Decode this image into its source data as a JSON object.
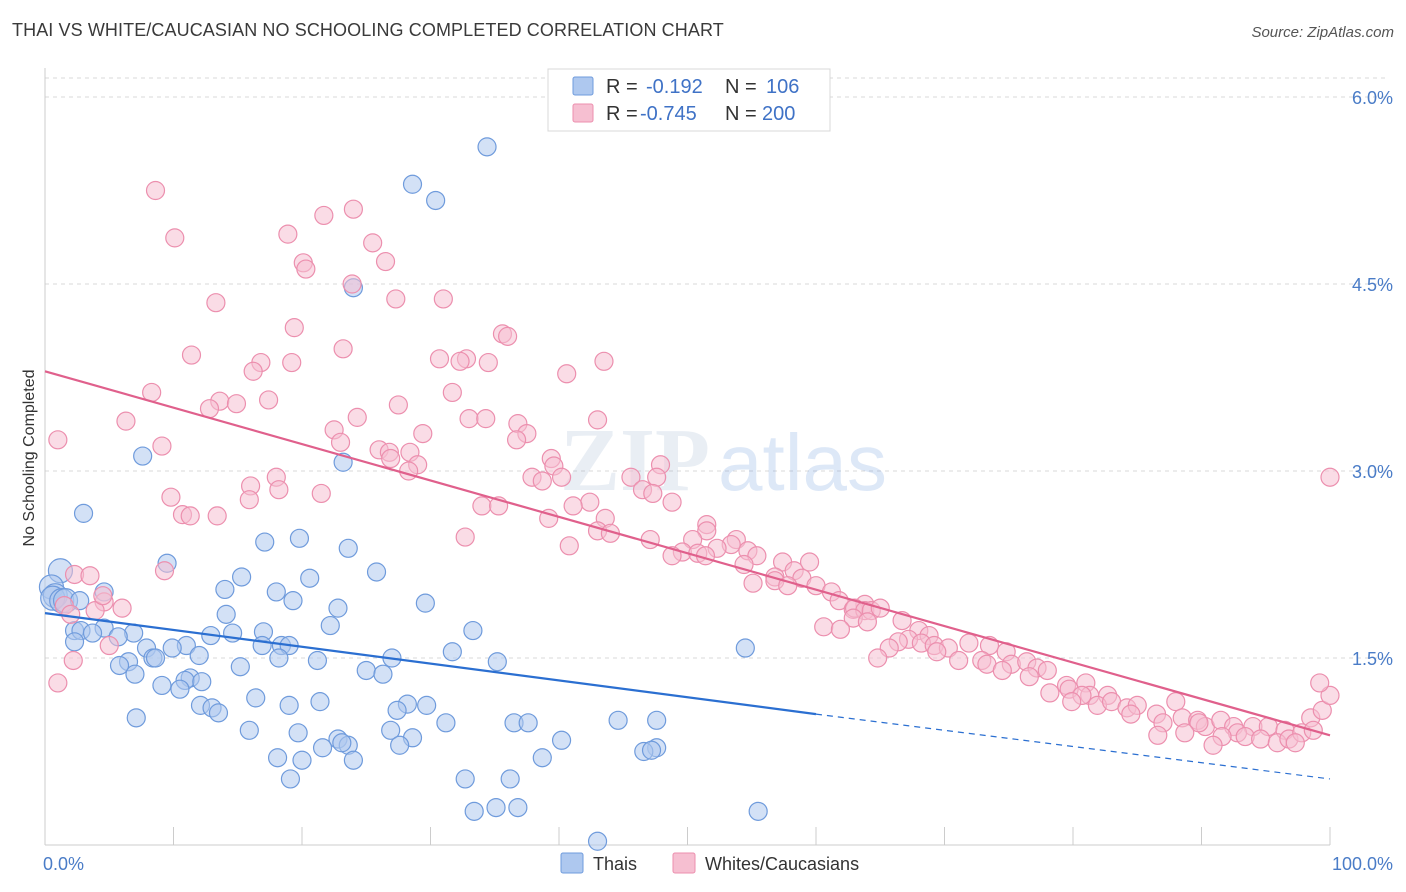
{
  "title": "THAI VS WHITE/CAUCASIAN NO SCHOOLING COMPLETED CORRELATION CHART",
  "source": "Source: ZipAtlas.com",
  "watermark": {
    "part1": "ZIP",
    "part2": "atlas"
  },
  "legend": {
    "r_label": "R =",
    "n_label": "N =",
    "rows": [
      {
        "r": "-0.192",
        "n": "106"
      },
      {
        "r": "-0.745",
        "n": "200"
      }
    ]
  },
  "bottom_legend": [
    "Thais",
    "Whites/Caucasians"
  ],
  "colors": {
    "blue_fill": "#aec8ef",
    "blue_stroke": "#6f9bdc",
    "blue_line": "#2b6fd1",
    "pink_fill": "#f6bfd1",
    "pink_stroke": "#ec8fae",
    "pink_line": "#e0608c",
    "tick": "#4a7cc7",
    "grid": "#d9d9d9"
  },
  "chart_data": {
    "type": "scatter",
    "title": "THAI VS WHITE/CAUCASIAN NO SCHOOLING COMPLETED CORRELATION CHART",
    "xlabel": "",
    "ylabel": "No Schooling Completed",
    "xlim": [
      0,
      100
    ],
    "ylim": [
      0,
      6
    ],
    "x_tick_labels": [
      "0.0%",
      "100.0%"
    ],
    "y_ticks": [
      1.5,
      3.0,
      4.5,
      6.0
    ],
    "y_tick_labels": [
      "1.5%",
      "3.0%",
      "4.5%",
      "6.0%"
    ],
    "grid": true,
    "legend_position": "top-center",
    "series": [
      {
        "name": "Thais",
        "r": -0.192,
        "n": 106,
        "trend": {
          "x0": 0,
          "y0": 1.86,
          "x1": 60,
          "y1": 1.05,
          "dashed_to_x": 100,
          "dashed_to_y": 0.53
        },
        "points": [
          [
            34.4,
            5.6
          ],
          [
            28.6,
            5.3
          ],
          [
            30.4,
            5.17
          ],
          [
            24.0,
            4.47
          ],
          [
            7.6,
            3.12
          ],
          [
            23.2,
            3.07
          ],
          [
            3.0,
            2.66
          ],
          [
            17.1,
            2.43
          ],
          [
            19.8,
            2.46
          ],
          [
            1.2,
            2.2
          ],
          [
            23.6,
            2.38
          ],
          [
            9.5,
            2.26
          ],
          [
            25.8,
            2.19
          ],
          [
            15.3,
            2.15
          ],
          [
            20.6,
            2.14
          ],
          [
            0.5,
            2.07
          ],
          [
            0.8,
            2.0
          ],
          [
            14.0,
            2.05
          ],
          [
            18.0,
            2.03
          ],
          [
            0.6,
            1.98
          ],
          [
            1.3,
            1.96
          ],
          [
            1.6,
            1.96
          ],
          [
            2.7,
            1.96
          ],
          [
            19.3,
            1.96
          ],
          [
            4.6,
            2.03
          ],
          [
            29.6,
            1.94
          ],
          [
            22.8,
            1.9
          ],
          [
            14.1,
            1.85
          ],
          [
            2.3,
            1.72
          ],
          [
            2.8,
            1.72
          ],
          [
            4.6,
            1.74
          ],
          [
            3.7,
            1.7
          ],
          [
            22.2,
            1.76
          ],
          [
            33.3,
            1.72
          ],
          [
            17.0,
            1.71
          ],
          [
            6.9,
            1.7
          ],
          [
            12.9,
            1.68
          ],
          [
            14.6,
            1.7
          ],
          [
            5.7,
            1.67
          ],
          [
            2.3,
            1.63
          ],
          [
            11.0,
            1.6
          ],
          [
            16.9,
            1.6
          ],
          [
            18.4,
            1.6
          ],
          [
            19.0,
            1.6
          ],
          [
            7.9,
            1.58
          ],
          [
            9.9,
            1.58
          ],
          [
            54.5,
            1.58
          ],
          [
            31.7,
            1.55
          ],
          [
            12.0,
            1.52
          ],
          [
            8.4,
            1.5
          ],
          [
            8.6,
            1.5
          ],
          [
            18.2,
            1.5
          ],
          [
            27.0,
            1.5
          ],
          [
            35.2,
            1.47
          ],
          [
            6.5,
            1.47
          ],
          [
            21.2,
            1.48
          ],
          [
            5.8,
            1.44
          ],
          [
            15.2,
            1.43
          ],
          [
            7.0,
            1.37
          ],
          [
            25.0,
            1.4
          ],
          [
            26.3,
            1.37
          ],
          [
            11.3,
            1.34
          ],
          [
            10.9,
            1.32
          ],
          [
            12.2,
            1.31
          ],
          [
            9.1,
            1.28
          ],
          [
            10.5,
            1.25
          ],
          [
            16.4,
            1.18
          ],
          [
            19.0,
            1.12
          ],
          [
            12.1,
            1.12
          ],
          [
            28.2,
            1.13
          ],
          [
            29.7,
            1.12
          ],
          [
            27.4,
            1.08
          ],
          [
            21.4,
            1.15
          ],
          [
            13.0,
            1.1
          ],
          [
            13.5,
            1.06
          ],
          [
            7.1,
            1.02
          ],
          [
            36.5,
            0.98
          ],
          [
            37.6,
            0.98
          ],
          [
            44.6,
            1.0
          ],
          [
            47.6,
            1.0
          ],
          [
            31.2,
            0.98
          ],
          [
            15.9,
            0.92
          ],
          [
            26.9,
            0.92
          ],
          [
            19.7,
            0.9
          ],
          [
            22.8,
            0.85
          ],
          [
            28.6,
            0.86
          ],
          [
            23.6,
            0.8
          ],
          [
            27.6,
            0.8
          ],
          [
            21.6,
            0.78
          ],
          [
            40.2,
            0.84
          ],
          [
            47.6,
            0.78
          ],
          [
            46.6,
            0.75
          ],
          [
            47.2,
            0.76
          ],
          [
            38.7,
            0.7
          ],
          [
            18.1,
            0.7
          ],
          [
            24.0,
            0.68
          ],
          [
            20.0,
            0.68
          ],
          [
            23.1,
            0.82
          ],
          [
            19.1,
            0.53
          ],
          [
            32.7,
            0.53
          ],
          [
            36.2,
            0.53
          ],
          [
            35.1,
            0.3
          ],
          [
            36.8,
            0.3
          ],
          [
            33.4,
            0.27
          ],
          [
            55.5,
            0.27
          ],
          [
            43.0,
            0.03
          ]
        ]
      },
      {
        "name": "Whites/Caucasians",
        "r": -0.745,
        "n": 200,
        "trend": {
          "x0": 0,
          "y0": 3.8,
          "x1": 100,
          "y1": 0.88
        },
        "points": [
          [
            8.6,
            5.25
          ],
          [
            24.0,
            5.1
          ],
          [
            21.7,
            5.05
          ],
          [
            10.1,
            4.87
          ],
          [
            18.9,
            4.9
          ],
          [
            25.5,
            4.83
          ],
          [
            20.1,
            4.67
          ],
          [
            26.5,
            4.68
          ],
          [
            20.3,
            4.62
          ],
          [
            23.9,
            4.5
          ],
          [
            13.3,
            4.35
          ],
          [
            27.3,
            4.38
          ],
          [
            31.0,
            4.38
          ],
          [
            19.4,
            4.15
          ],
          [
            35.6,
            4.1
          ],
          [
            36.0,
            4.08
          ],
          [
            23.2,
            3.98
          ],
          [
            11.4,
            3.93
          ],
          [
            30.7,
            3.9
          ],
          [
            32.8,
            3.9
          ],
          [
            32.3,
            3.88
          ],
          [
            34.5,
            3.87
          ],
          [
            43.5,
            3.88
          ],
          [
            16.8,
            3.87
          ],
          [
            19.2,
            3.87
          ],
          [
            16.2,
            3.8
          ],
          [
            40.6,
            3.78
          ],
          [
            8.3,
            3.63
          ],
          [
            31.7,
            3.63
          ],
          [
            13.6,
            3.56
          ],
          [
            14.9,
            3.54
          ],
          [
            17.4,
            3.57
          ],
          [
            27.5,
            3.53
          ],
          [
            12.8,
            3.5
          ],
          [
            6.3,
            3.4
          ],
          [
            22.5,
            3.33
          ],
          [
            24.3,
            3.43
          ],
          [
            33.0,
            3.42
          ],
          [
            34.3,
            3.42
          ],
          [
            36.8,
            3.38
          ],
          [
            43.0,
            3.41
          ],
          [
            37.5,
            3.3
          ],
          [
            29.4,
            3.3
          ],
          [
            23.0,
            3.23
          ],
          [
            9.1,
            3.2
          ],
          [
            26.0,
            3.17
          ],
          [
            28.4,
            3.15
          ],
          [
            36.7,
            3.25
          ],
          [
            1.0,
            3.25
          ],
          [
            26.8,
            3.15
          ],
          [
            39.4,
            3.1
          ],
          [
            29.0,
            3.05
          ],
          [
            39.6,
            3.04
          ],
          [
            28.3,
            3.0
          ],
          [
            47.9,
            3.05
          ],
          [
            26.9,
            3.1
          ],
          [
            37.9,
            2.95
          ],
          [
            47.6,
            2.95
          ],
          [
            40.2,
            2.95
          ],
          [
            45.6,
            2.95
          ],
          [
            18.0,
            2.95
          ],
          [
            38.7,
            2.92
          ],
          [
            16.0,
            2.88
          ],
          [
            18.2,
            2.85
          ],
          [
            21.5,
            2.82
          ],
          [
            46.5,
            2.85
          ],
          [
            47.3,
            2.82
          ],
          [
            9.8,
            2.79
          ],
          [
            15.9,
            2.77
          ],
          [
            48.8,
            2.75
          ],
          [
            42.4,
            2.75
          ],
          [
            41.1,
            2.72
          ],
          [
            34.0,
            2.72
          ],
          [
            35.3,
            2.72
          ],
          [
            13.4,
            2.64
          ],
          [
            10.7,
            2.65
          ],
          [
            11.3,
            2.64
          ],
          [
            39.2,
            2.62
          ],
          [
            43.6,
            2.62
          ],
          [
            51.5,
            2.57
          ],
          [
            43.0,
            2.52
          ],
          [
            51.5,
            2.52
          ],
          [
            44.0,
            2.5
          ],
          [
            32.7,
            2.47
          ],
          [
            50.4,
            2.45
          ],
          [
            53.8,
            2.45
          ],
          [
            47.1,
            2.45
          ],
          [
            53.4,
            2.41
          ],
          [
            52.3,
            2.38
          ],
          [
            40.8,
            2.4
          ],
          [
            49.6,
            2.35
          ],
          [
            50.8,
            2.34
          ],
          [
            51.4,
            2.32
          ],
          [
            54.7,
            2.36
          ],
          [
            48.8,
            2.32
          ],
          [
            55.4,
            2.32
          ],
          [
            57.4,
            2.27
          ],
          [
            59.5,
            2.27
          ],
          [
            54.4,
            2.25
          ],
          [
            58.3,
            2.2
          ],
          [
            9.3,
            2.2
          ],
          [
            2.3,
            2.17
          ],
          [
            3.5,
            2.16
          ],
          [
            56.8,
            2.15
          ],
          [
            58.9,
            2.14
          ],
          [
            56.8,
            2.12
          ],
          [
            55.1,
            2.1
          ],
          [
            57.8,
            2.08
          ],
          [
            60.0,
            2.08
          ],
          [
            61.2,
            2.03
          ],
          [
            63.8,
            1.93
          ],
          [
            61.8,
            1.96
          ],
          [
            62.9,
            1.89
          ],
          [
            63.0,
            1.9
          ],
          [
            63.8,
            1.88
          ],
          [
            64.3,
            1.88
          ],
          [
            65.0,
            1.9
          ],
          [
            4.6,
            1.95
          ],
          [
            1.5,
            1.92
          ],
          [
            6.0,
            1.9
          ],
          [
            3.9,
            1.88
          ],
          [
            2.0,
            1.85
          ],
          [
            62.9,
            1.82
          ],
          [
            66.7,
            1.8
          ],
          [
            64.0,
            1.79
          ],
          [
            60.6,
            1.75
          ],
          [
            61.9,
            1.73
          ],
          [
            68.0,
            1.72
          ],
          [
            68.8,
            1.68
          ],
          [
            67.2,
            1.65
          ],
          [
            66.4,
            1.63
          ],
          [
            68.2,
            1.62
          ],
          [
            69.2,
            1.6
          ],
          [
            65.7,
            1.58
          ],
          [
            70.3,
            1.58
          ],
          [
            71.9,
            1.62
          ],
          [
            73.5,
            1.6
          ],
          [
            74.8,
            1.55
          ],
          [
            69.4,
            1.55
          ],
          [
            64.8,
            1.5
          ],
          [
            71.1,
            1.48
          ],
          [
            72.9,
            1.48
          ],
          [
            73.3,
            1.45
          ],
          [
            75.2,
            1.45
          ],
          [
            76.4,
            1.47
          ],
          [
            77.2,
            1.42
          ],
          [
            74.5,
            1.4
          ],
          [
            78.0,
            1.4
          ],
          [
            76.6,
            1.35
          ],
          [
            81.0,
            1.3
          ],
          [
            79.5,
            1.28
          ],
          [
            79.7,
            1.25
          ],
          [
            78.2,
            1.22
          ],
          [
            81.3,
            1.2
          ],
          [
            80.7,
            1.2
          ],
          [
            82.7,
            1.2
          ],
          [
            79.9,
            1.15
          ],
          [
            81.9,
            1.12
          ],
          [
            83.0,
            1.15
          ],
          [
            84.2,
            1.1
          ],
          [
            85.0,
            1.12
          ],
          [
            88.0,
            1.15
          ],
          [
            84.5,
            1.05
          ],
          [
            86.5,
            1.05
          ],
          [
            88.5,
            1.02
          ],
          [
            89.7,
            1.0
          ],
          [
            90.3,
            0.95
          ],
          [
            91.5,
            1.0
          ],
          [
            92.5,
            0.95
          ],
          [
            87.0,
            0.98
          ],
          [
            89.8,
            0.98
          ],
          [
            94.0,
            0.95
          ],
          [
            95.2,
            0.95
          ],
          [
            96.5,
            0.92
          ],
          [
            98.5,
            1.02
          ],
          [
            99.4,
            1.08
          ],
          [
            100.0,
            1.2
          ],
          [
            99.2,
            1.3
          ],
          [
            92.8,
            0.9
          ],
          [
            93.4,
            0.87
          ],
          [
            91.6,
            0.87
          ],
          [
            94.6,
            0.85
          ],
          [
            95.9,
            0.82
          ],
          [
            96.8,
            0.85
          ],
          [
            97.8,
            0.9
          ],
          [
            98.7,
            0.92
          ],
          [
            97.3,
            0.82
          ],
          [
            88.7,
            0.9
          ],
          [
            90.9,
            0.8
          ],
          [
            86.6,
            0.88
          ],
          [
            100.0,
            2.95
          ],
          [
            5.0,
            1.6
          ],
          [
            4.5,
            2.0
          ],
          [
            1.0,
            1.3
          ],
          [
            2.2,
            1.48
          ]
        ]
      }
    ]
  }
}
